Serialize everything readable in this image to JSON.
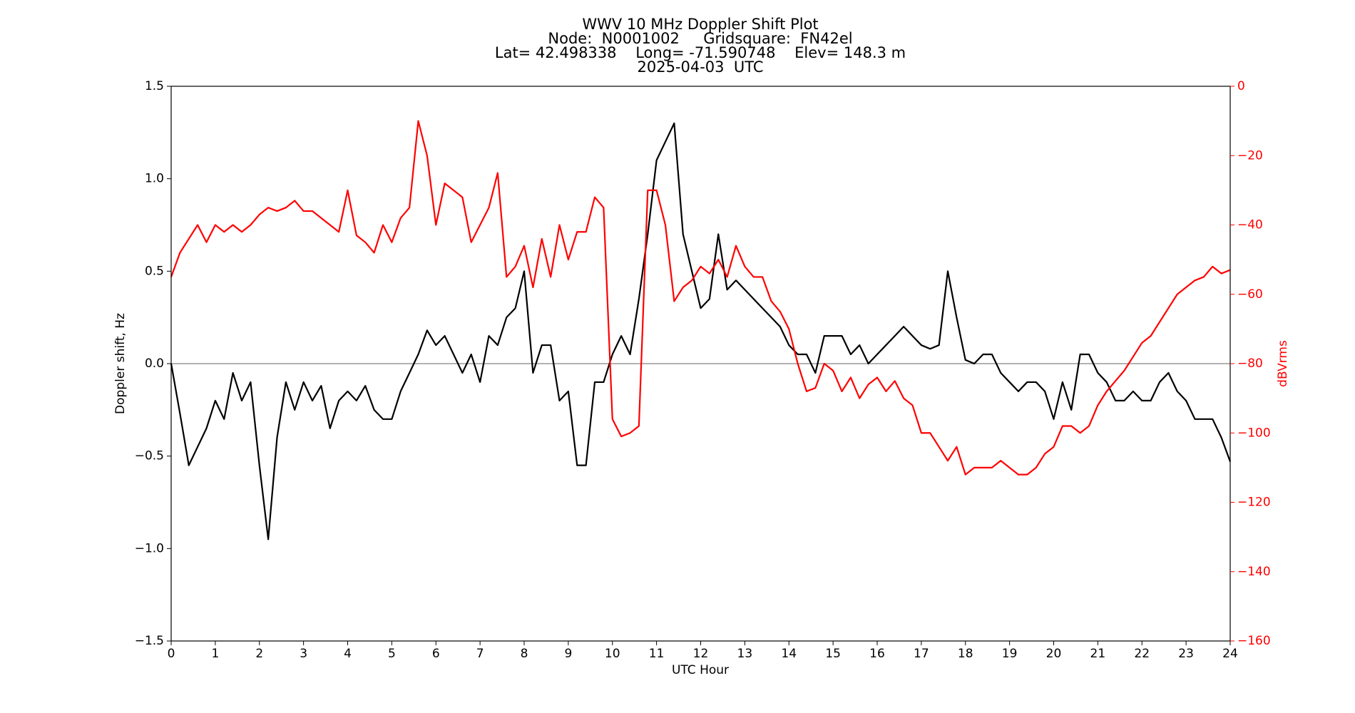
{
  "chart_data": {
    "type": "line",
    "title_lines": [
      "WWV 10 MHz Doppler Shift Plot",
      "Node:  N0001002     Gridsquare:  FN42el",
      "Lat= 42.498338    Long= -71.590748    Elev= 148.3 m",
      "2025-04-03  UTC"
    ],
    "xlabel": "UTC Hour",
    "ylabel": "Doppler shift, Hz",
    "y2label": "dBVrms",
    "y2color": "#ff0000",
    "x": [
      0,
      0.2,
      0.4,
      0.6,
      0.8,
      1,
      1.2,
      1.4,
      1.6,
      1.8,
      2,
      2.2,
      2.4,
      2.6,
      2.8,
      3,
      3.2,
      3.4,
      3.6,
      3.8,
      4,
      4.2,
      4.4,
      4.6,
      4.8,
      5,
      5.2,
      5.4,
      5.6,
      5.8,
      6,
      6.2,
      6.4,
      6.6,
      6.8,
      7,
      7.2,
      7.4,
      7.6,
      7.8,
      8,
      8.2,
      8.4,
      8.6,
      8.8,
      9,
      9.2,
      9.4,
      9.6,
      9.8,
      10,
      10.2,
      10.4,
      10.6,
      10.8,
      11,
      11.2,
      11.4,
      11.6,
      11.8,
      12,
      12.2,
      12.4,
      12.6,
      12.8,
      13,
      13.2,
      13.4,
      13.6,
      13.8,
      14,
      14.2,
      14.4,
      14.6,
      14.8,
      15,
      15.2,
      15.4,
      15.6,
      15.8,
      16,
      16.2,
      16.4,
      16.6,
      16.8,
      17,
      17.2,
      17.4,
      17.6,
      17.8,
      18,
      18.2,
      18.4,
      18.6,
      18.8,
      19,
      19.2,
      19.4,
      19.6,
      19.8,
      20,
      20.2,
      20.4,
      20.6,
      20.8,
      21,
      21.2,
      21.4,
      21.6,
      21.8,
      22,
      22.2,
      22.4,
      22.6,
      22.8,
      23,
      23.2,
      23.4,
      23.6,
      23.8,
      24
    ],
    "series": [
      {
        "color": "#000000",
        "values": [
          0,
          -0.27,
          -0.55,
          -0.45,
          -0.35,
          -0.2,
          -0.3,
          -0.05,
          -0.2,
          -0.1,
          -0.55,
          -0.95,
          -0.4,
          -0.1,
          -0.25,
          -0.1,
          -0.2,
          -0.12,
          -0.35,
          -0.2,
          -0.15,
          -0.2,
          -0.12,
          -0.25,
          -0.3,
          -0.3,
          -0.15,
          -0.05,
          0.05,
          0.18,
          0.1,
          0.15,
          0.05,
          -0.05,
          0.05,
          -0.1,
          0.15,
          0.1,
          0.25,
          0.3,
          0.5,
          -0.05,
          0.1,
          0.1,
          -0.2,
          -0.15,
          -0.55,
          -0.55,
          -0.1,
          -0.1,
          0.05,
          0.15,
          0.05,
          0.35,
          0.7,
          1.1,
          1.2,
          1.3,
          0.7,
          0.5,
          0.3,
          0.35,
          0.7,
          0.4,
          0.45,
          0.4,
          0.35,
          0.3,
          0.25,
          0.2,
          0.1,
          0.05,
          0.05,
          -0.05,
          0.15,
          0.15,
          0.15,
          0.05,
          0.1,
          0,
          0.05,
          0.1,
          0.15,
          0.2,
          0.15,
          0.1,
          0.08,
          0.1,
          0.5,
          0.25,
          0.02,
          0,
          0.05,
          0.05,
          -0.05,
          -0.1,
          -0.15,
          -0.1,
          -0.1,
          -0.15,
          -0.3,
          -0.1,
          -0.25,
          0.05,
          0.05,
          -0.05,
          -0.1,
          -0.2,
          -0.2,
          -0.15,
          -0.2,
          -0.2,
          -0.1,
          -0.05,
          -0.15,
          -0.2,
          -0.3,
          -0.3,
          -0.3,
          -0.4,
          -0.53
        ]
      },
      {
        "color": "#ff0000",
        "axis": "y2",
        "values": [
          -55,
          -48,
          -44,
          -40,
          -45,
          -40,
          -42,
          -40,
          -42,
          -40,
          -37,
          -35,
          -36,
          -35,
          -33,
          -36,
          -36,
          -38,
          -40,
          -42,
          -30,
          -43,
          -45,
          -48,
          -40,
          -45,
          -38,
          -35,
          -10,
          -20,
          -40,
          -28,
          -30,
          -32,
          -45,
          -40,
          -35,
          -25,
          -55,
          -52,
          -46,
          -58,
          -44,
          -55,
          -40,
          -50,
          -42,
          -42,
          -32,
          -35,
          -96,
          -101,
          -100,
          -98,
          -30,
          -30,
          -40,
          -62,
          -58,
          -56,
          -52,
          -54,
          -50,
          -55,
          -46,
          -52,
          -55,
          -55,
          -62,
          -65,
          -70,
          -80,
          -88,
          -87,
          -80,
          -82,
          -88,
          -84,
          -90,
          -86,
          -84,
          -88,
          -85,
          -90,
          -92,
          -100,
          -100,
          -104,
          -108,
          -104,
          -112,
          -110,
          -110,
          -110,
          -108,
          -110,
          -112,
          -112,
          -110,
          -106,
          -104,
          -98,
          -98,
          -100,
          -98,
          -92,
          -88,
          -85,
          -82,
          -78,
          -74,
          -72,
          -68,
          -64,
          -60,
          -58,
          -56,
          -55,
          -52,
          -54,
          -53
        ]
      }
    ],
    "hline": 0,
    "hline_color": "#999999",
    "xlim": [
      0,
      24
    ],
    "xticks": [
      0,
      1,
      2,
      3,
      4,
      5,
      6,
      7,
      8,
      9,
      10,
      11,
      12,
      13,
      14,
      15,
      16,
      17,
      18,
      19,
      20,
      21,
      22,
      23,
      24
    ],
    "ylim": [
      -1.5,
      1.5
    ],
    "yticks": [
      {
        "value": -1.5,
        "label": "−1.5"
      },
      {
        "value": -1.0,
        "label": "−1.0"
      },
      {
        "value": -0.5,
        "label": "−0.5"
      },
      {
        "value": 0.0,
        "label": "0.0"
      },
      {
        "value": 0.5,
        "label": "0.5"
      },
      {
        "value": 1.0,
        "label": "1.0"
      },
      {
        "value": 1.5,
        "label": "1.5"
      }
    ],
    "y2lim": [
      -160,
      0
    ],
    "y2ticks": [
      {
        "value": -160,
        "label": "−160"
      },
      {
        "value": -140,
        "label": "−140"
      },
      {
        "value": -120,
        "label": "−120"
      },
      {
        "value": -100,
        "label": "−100"
      },
      {
        "value": -80,
        "label": "−80"
      },
      {
        "value": -60,
        "label": "−60"
      },
      {
        "value": -40,
        "label": "−40"
      },
      {
        "value": -20,
        "label": "−20"
      },
      0
    ]
  }
}
